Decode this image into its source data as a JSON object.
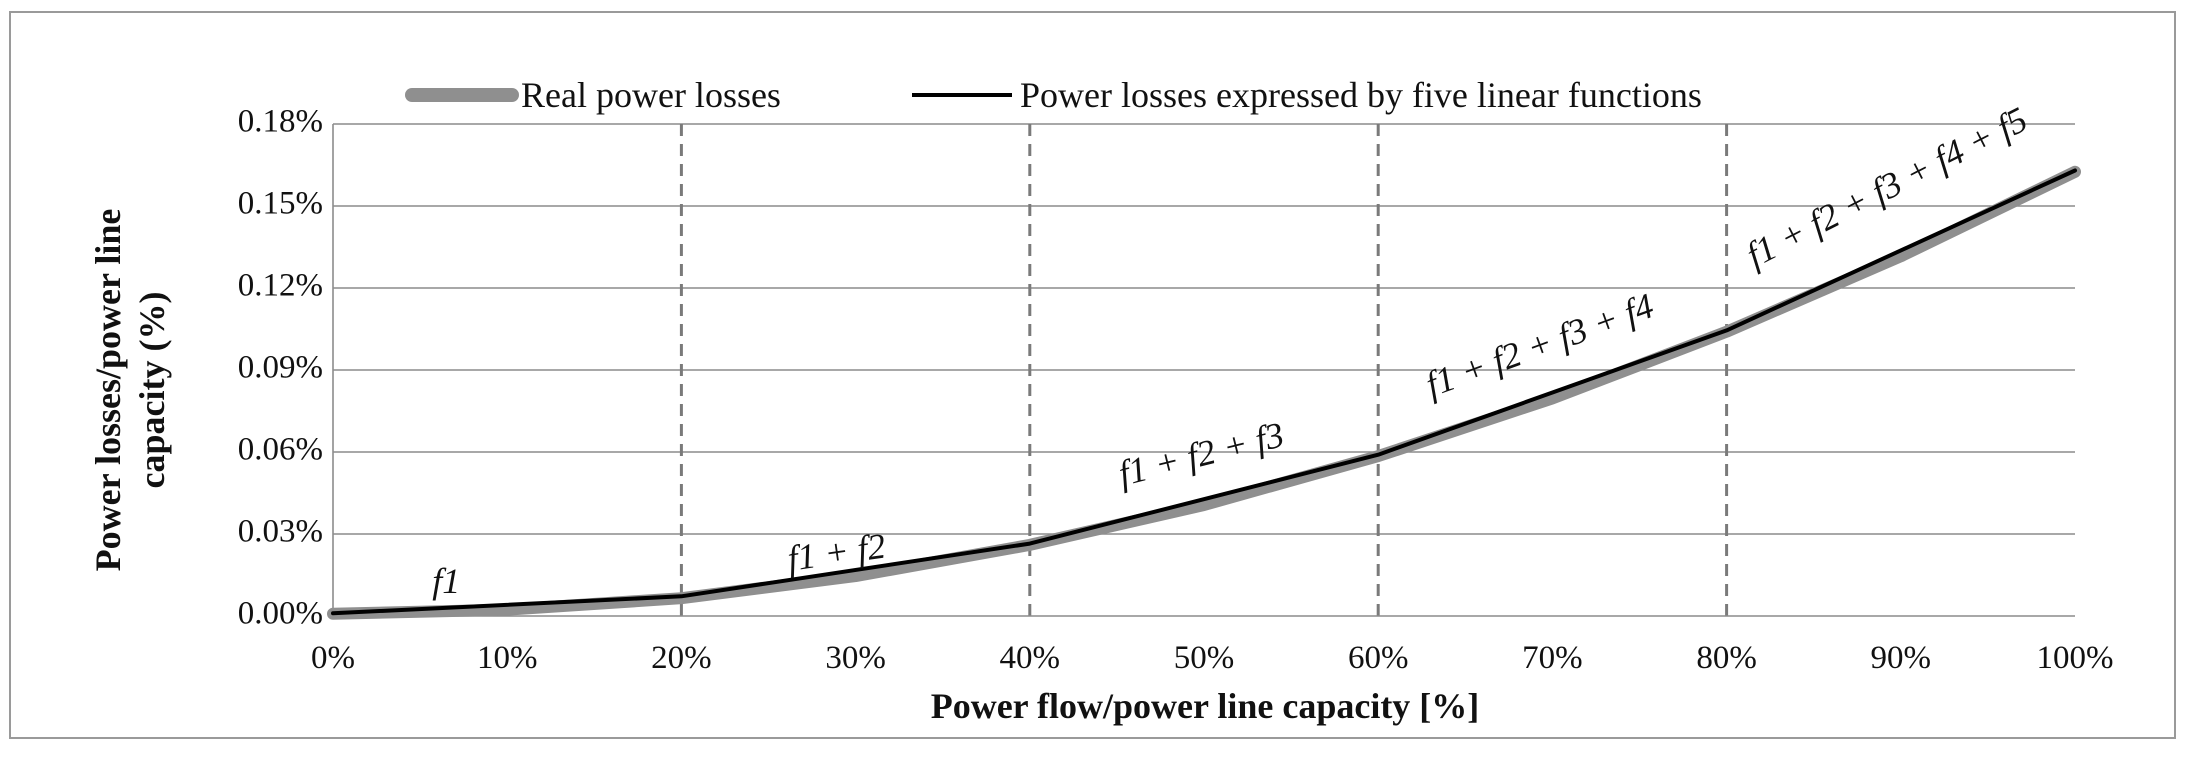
{
  "chart_data": {
    "type": "line",
    "xlabel": "Power flow/power line capacity [%]",
    "ylabel_lines": [
      "Power losses/power line",
      "capacity (%)"
    ],
    "x": [
      0,
      10,
      20,
      30,
      40,
      50,
      60,
      70,
      80,
      90,
      100
    ],
    "x_tick_labels": [
      "0%",
      "10%",
      "20%",
      "30%",
      "40%",
      "50%",
      "60%",
      "70%",
      "80%",
      "90%",
      "100%"
    ],
    "y_tick_values": [
      0,
      0.03,
      0.06,
      0.09,
      0.12,
      0.15,
      0.18
    ],
    "y_tick_labels": [
      "0.00%",
      "0.03%",
      "0.06%",
      "0.09%",
      "0.12%",
      "0.15%",
      "0.18%"
    ],
    "xlim": [
      0,
      100
    ],
    "ylim": [
      0,
      0.18
    ],
    "grid": "horizontal",
    "breakpoints": [
      20,
      40,
      60,
      80
    ],
    "legend_position": "top",
    "series": [
      {
        "name": "Real power losses",
        "color": "#8f8f8f",
        "x": [
          0,
          10,
          20,
          30,
          40,
          50,
          60,
          70,
          80,
          90,
          100
        ],
        "values": [
          0.0008,
          0.0023,
          0.0065,
          0.0146,
          0.026,
          0.0406,
          0.0585,
          0.0796,
          0.104,
          0.1316,
          0.1625
        ]
      },
      {
        "name": "Power losses expressed by five linear functions",
        "color": "#000000",
        "x": [
          0,
          20,
          40,
          60,
          80,
          100
        ],
        "values": [
          0.001,
          0.0072,
          0.0265,
          0.059,
          0.1045,
          0.163
        ]
      }
    ],
    "annotations": [
      {
        "text": "f1",
        "x": 6.5,
        "y": 0.0085,
        "angle": 0
      },
      {
        "text": "f1 + f2",
        "x": 29,
        "y": 0.019,
        "angle": -8
      },
      {
        "text": "f1 + f2 + f3",
        "x": 50,
        "y": 0.055,
        "angle": -14
      },
      {
        "text": "f1 + f2 + f3 + f4",
        "x": 69.5,
        "y": 0.095,
        "angle": -20
      },
      {
        "text": "f1 + f2 + f3 + f4 + f5",
        "x": 89.5,
        "y": 0.153,
        "angle": -27
      }
    ]
  }
}
